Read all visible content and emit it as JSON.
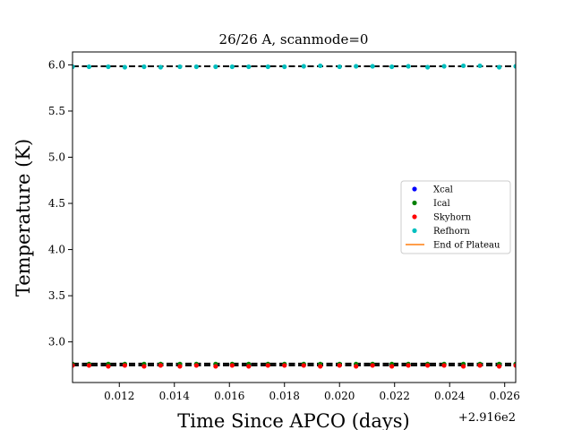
{
  "chart_data": {
    "type": "scatter",
    "title": "26/26 A, scanmode=0",
    "xlabel": "Time Since APCO (days)",
    "ylabel": "Temperature (K)",
    "x_offset_text": "+2.916e2",
    "xlim": [
      0.0103,
      0.0264
    ],
    "ylim": [
      2.56,
      6.14
    ],
    "x_ticks": [
      0.012,
      0.014,
      0.016,
      0.018,
      0.02,
      0.022,
      0.024,
      0.026
    ],
    "x_tick_labels": [
      "0.012",
      "0.014",
      "0.016",
      "0.018",
      "0.020",
      "0.022",
      "0.024",
      "0.026"
    ],
    "y_ticks": [
      3.0,
      3.5,
      4.0,
      4.5,
      5.0,
      5.5,
      6.0
    ],
    "y_tick_labels": [
      "3.0",
      "3.5",
      "4.0",
      "4.5",
      "5.0",
      "5.5",
      "6.0"
    ],
    "grid": false,
    "legend_position": "center-right",
    "hlines": [
      {
        "y": 5.985,
        "color": "#000000",
        "style": "dashed"
      },
      {
        "y": 2.765,
        "color": "#000000",
        "style": "dashed"
      },
      {
        "y": 2.745,
        "color": "#000000",
        "style": "dashed"
      }
    ],
    "x": [
      0.0103,
      0.0109,
      0.0116,
      0.0122,
      0.0129,
      0.0135,
      0.0142,
      0.0148,
      0.0155,
      0.0161,
      0.0167,
      0.0174,
      0.018,
      0.0187,
      0.0193,
      0.02,
      0.0206,
      0.0212,
      0.0219,
      0.0225,
      0.0232,
      0.0238,
      0.0245,
      0.0251,
      0.0258,
      0.0264
    ],
    "series": [
      {
        "name": "Xcal",
        "color": "#0000ff",
        "values": [
          2.757,
          2.757,
          2.756,
          2.757,
          2.757,
          2.757,
          2.757,
          2.756,
          2.757,
          2.757,
          2.757,
          2.757,
          2.757,
          2.757,
          2.757,
          2.757,
          2.757,
          2.757,
          2.757,
          2.757,
          2.757,
          2.757,
          2.757,
          2.757,
          2.757,
          2.757
        ]
      },
      {
        "name": "Ical",
        "color": "#008000",
        "values": [
          2.76,
          2.76,
          2.76,
          2.76,
          2.76,
          2.76,
          2.76,
          2.76,
          2.76,
          2.76,
          2.76,
          2.76,
          2.76,
          2.76,
          2.76,
          2.76,
          2.76,
          2.76,
          2.76,
          2.76,
          2.76,
          2.76,
          2.76,
          2.76,
          2.76,
          2.76
        ]
      },
      {
        "name": "Skyhorn",
        "color": "#ff0000",
        "values": [
          2.745,
          2.745,
          2.735,
          2.745,
          2.735,
          2.745,
          2.735,
          2.745,
          2.735,
          2.745,
          2.735,
          2.745,
          2.745,
          2.745,
          2.735,
          2.745,
          2.735,
          2.745,
          2.735,
          2.745,
          2.745,
          2.745,
          2.735,
          2.745,
          2.735,
          2.745
        ]
      },
      {
        "name": "Refhorn",
        "color": "#00bfbf",
        "values": [
          5.98,
          5.98,
          5.98,
          5.975,
          5.98,
          5.975,
          5.98,
          5.98,
          5.98,
          5.98,
          5.98,
          5.98,
          5.98,
          5.985,
          5.99,
          5.98,
          5.985,
          5.985,
          5.98,
          5.985,
          5.975,
          5.985,
          5.99,
          5.99,
          5.975,
          5.985
        ]
      }
    ],
    "legend": [
      {
        "label": "Xcal",
        "color": "#0000ff",
        "kind": "dot"
      },
      {
        "label": "Ical",
        "color": "#008000",
        "kind": "dot"
      },
      {
        "label": "Skyhorn",
        "color": "#ff0000",
        "kind": "dot"
      },
      {
        "label": "Refhorn",
        "color": "#00bfbf",
        "kind": "dot"
      },
      {
        "label": "End of Plateau",
        "color": "#ff7f0e",
        "kind": "line"
      }
    ]
  }
}
